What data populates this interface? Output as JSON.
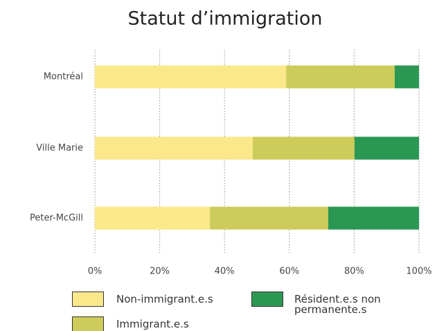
{
  "chart_data": {
    "type": "stacked-bar-horizontal",
    "title": "Statut d’immigration",
    "categories": [
      "Montréal",
      "Ville Marie",
      "Peter-McGill"
    ],
    "series": [
      {
        "name": "Non-immigrant.e.s",
        "color": "#fbe88a",
        "values": [
          59.0,
          48.7,
          35.5
        ]
      },
      {
        "name": "Immigrant.e.s",
        "color": "#cdcc5a",
        "values": [
          33.5,
          31.4,
          36.5
        ]
      },
      {
        "name": "Résident.e.s non permanente.s",
        "color": "#2a9852",
        "values": [
          7.5,
          19.9,
          28.0
        ]
      }
    ],
    "xlim": [
      0,
      100
    ],
    "xticks": [
      {
        "value": 0,
        "label": "0%"
      },
      {
        "value": 20,
        "label": "20%"
      },
      {
        "value": 40,
        "label": "40%"
      },
      {
        "value": 60,
        "label": "60%"
      },
      {
        "value": 80,
        "label": "80%"
      },
      {
        "value": 100,
        "label": "100%"
      }
    ],
    "grid": true,
    "legend": "bottom"
  }
}
